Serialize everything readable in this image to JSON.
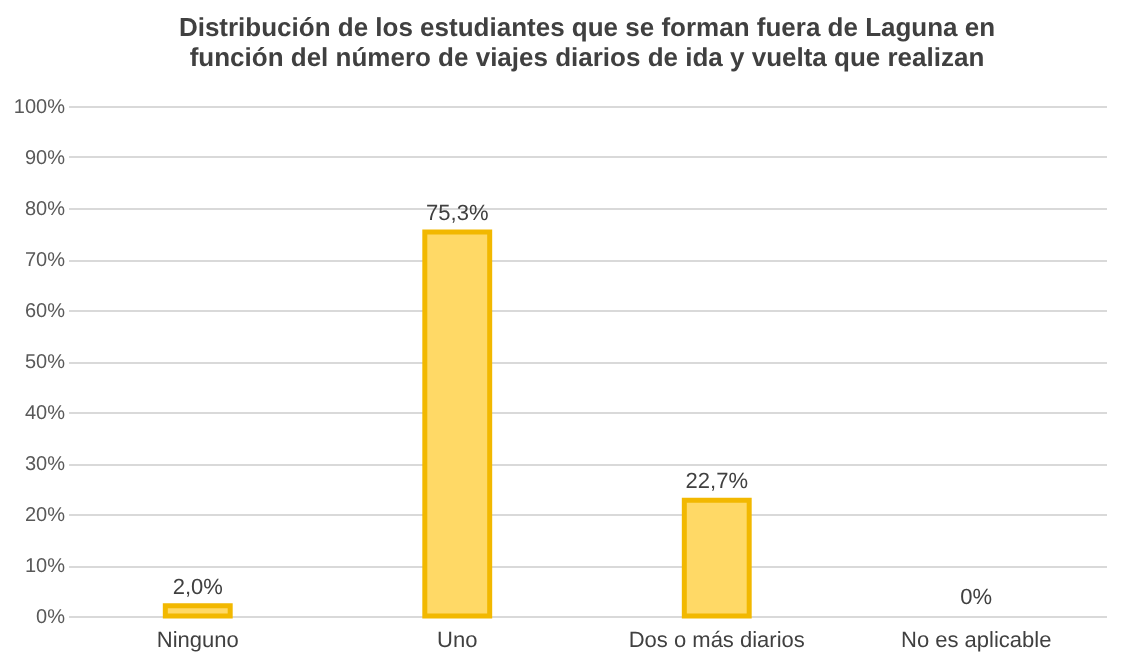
{
  "chart_data": {
    "type": "bar",
    "title": "Distribución de los estudiantes que se forman fuera de Laguna en función del número de viajes diarios de ida y vuelta que realizan",
    "categories": [
      "Ninguno",
      "Uno",
      "Dos o más diarios",
      "No es aplicable"
    ],
    "values": [
      2.0,
      75.3,
      22.7,
      0
    ],
    "value_labels": [
      "2,0%",
      "75,3%",
      "22,7%",
      "0%"
    ],
    "color": "#ffd966",
    "ylim": [
      0,
      100
    ],
    "yticks": [
      {
        "value": 0,
        "label": "0%"
      },
      {
        "value": 10,
        "label": "10%"
      },
      {
        "value": 20,
        "label": "20%"
      },
      {
        "value": 30,
        "label": "30%"
      },
      {
        "value": 40,
        "label": "40%"
      },
      {
        "value": 50,
        "label": "50%"
      },
      {
        "value": 60,
        "label": "60%"
      },
      {
        "value": 70,
        "label": "70%"
      },
      {
        "value": 80,
        "label": "80%"
      },
      {
        "value": 90,
        "label": "90%"
      },
      {
        "value": 100,
        "label": "100%"
      }
    ],
    "grid": "y"
  }
}
